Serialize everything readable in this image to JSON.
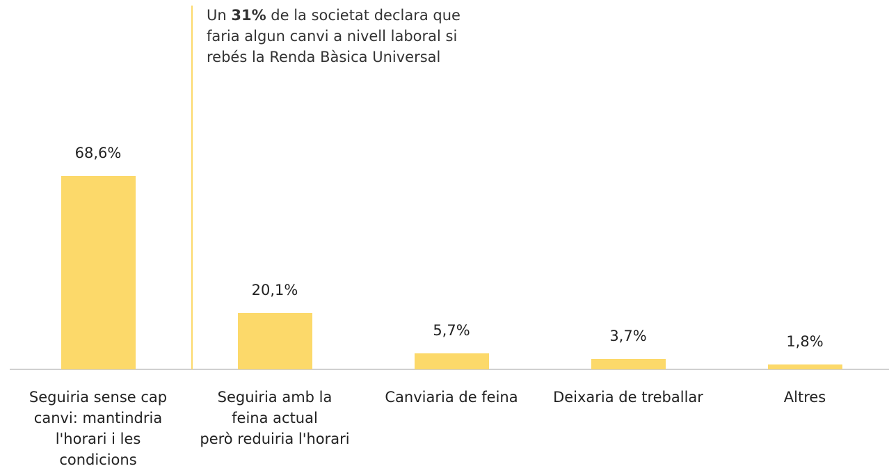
{
  "chart_data": {
    "type": "bar",
    "annotation": [
      "Un ",
      "31%",
      " de la societat declara que\nfaria algun canvi a nivell laboral si\nrebés la Renda Bàsica Universal"
    ],
    "categories": [
      "Seguiria sense cap\ncanvi: mantindria\nl'horari i les\ncondicions",
      "Seguiria amb la\nfeina actual\nperò reduiria l'horari",
      "Canviaria de feina",
      "Deixaria de treballar",
      "Altres"
    ],
    "values": [
      68.6,
      20.1,
      5.7,
      3.7,
      1.8
    ],
    "value_labels": [
      "68,6%",
      "20,1%",
      "5,7%",
      "3,7%",
      "1,8%"
    ],
    "color": "#fcd96a"
  }
}
